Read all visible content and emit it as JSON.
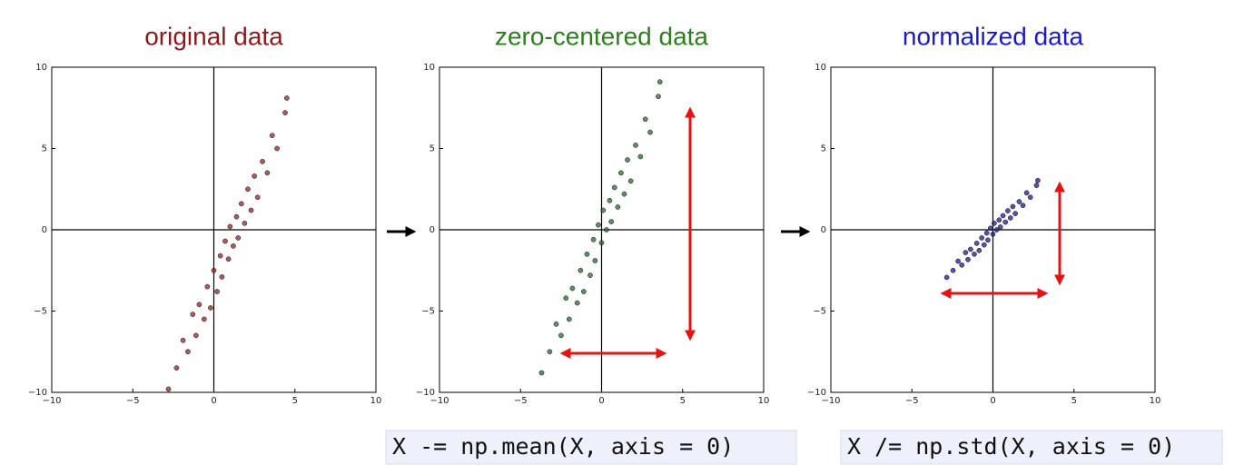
{
  "chart_data": [
    {
      "type": "scatter",
      "title": "original data",
      "title_color": "#8b1a1a",
      "color": "#8b2525",
      "x": [
        -2.8,
        -2.3,
        -1.9,
        -1.6,
        -1.3,
        -1.1,
        -0.9,
        -0.6,
        -0.4,
        -0.2,
        0,
        0.2,
        0.4,
        0.5,
        0.7,
        0.9,
        1,
        1.2,
        1.4,
        1.5,
        1.7,
        1.9,
        2.1,
        2.3,
        2.5,
        2.7,
        3,
        3.3,
        3.6,
        3.9,
        4.4,
        4.5
      ],
      "values": [
        -9.8,
        -8.5,
        -6.8,
        -7.5,
        -5.2,
        -6.5,
        -4.6,
        -5.5,
        -3.5,
        -4.8,
        -2.5,
        -3.8,
        -1.6,
        -2.9,
        -0.7,
        -1.8,
        0.2,
        -1,
        0.8,
        -0.5,
        1.6,
        0.4,
        2.5,
        1.2,
        3.3,
        2,
        4.2,
        3.5,
        5.8,
        5,
        7.2,
        8.1
      ],
      "xlim": [
        -10,
        10
      ],
      "ylim": [
        -10,
        10
      ],
      "xticks": [
        {
          "value": -10,
          "label": "−10"
        },
        {
          "value": -5,
          "label": "−5"
        },
        0,
        5,
        10
      ],
      "yticks": [
        {
          "value": -10,
          "label": "−10"
        },
        {
          "value": -5,
          "label": "−5"
        },
        0,
        5,
        10
      ]
    },
    {
      "type": "scatter",
      "title": "zero-centered data",
      "title_color": "#2e7d1e",
      "color": "#2a6a2a",
      "x": [
        -3.7,
        -3.2,
        -2.8,
        -2.5,
        -2.2,
        -2,
        -1.8,
        -1.5,
        -1.3,
        -1.1,
        -0.9,
        -0.7,
        -0.5,
        -0.4,
        -0.2,
        0,
        0.1,
        0.3,
        0.5,
        0.6,
        0.8,
        1,
        1.2,
        1.4,
        1.6,
        1.8,
        2.1,
        2.4,
        2.7,
        3,
        3.5,
        3.6
      ],
      "values": [
        -8.8,
        -7.5,
        -5.8,
        -6.5,
        -4.2,
        -5.5,
        -3.6,
        -4.5,
        -2.5,
        -3.8,
        -1.5,
        -2.8,
        -0.6,
        -1.9,
        0.3,
        -0.8,
        1.2,
        0,
        1.8,
        0.5,
        2.6,
        1.4,
        3.5,
        2.2,
        4.3,
        3,
        5.2,
        4.5,
        6.8,
        6,
        8.2,
        9.1
      ],
      "xlim": [
        -10,
        10
      ],
      "ylim": [
        -10,
        10
      ],
      "xticks": [
        {
          "value": -10,
          "label": "−10"
        },
        {
          "value": -5,
          "label": "−5"
        },
        0,
        5,
        10
      ],
      "yticks": [
        {
          "value": -10,
          "label": "−10"
        },
        {
          "value": -5,
          "label": "−5"
        },
        0,
        5,
        10
      ]
    },
    {
      "type": "scatter",
      "title": "normalized data",
      "title_color": "#1a1acc",
      "color": "#1c1c85",
      "x": [
        -2.85,
        -2.46,
        -2.15,
        -1.92,
        -1.69,
        -1.54,
        -1.38,
        -1.15,
        -1,
        -0.85,
        -0.69,
        -0.54,
        -0.38,
        -0.31,
        -0.15,
        0,
        0.08,
        0.23,
        0.38,
        0.46,
        0.62,
        0.77,
        0.92,
        1.08,
        1.23,
        1.38,
        1.62,
        1.85,
        2.08,
        2.31,
        2.69,
        2.77
      ],
      "values": [
        -2.93,
        -2.5,
        -1.93,
        -2.17,
        -1.4,
        -1.83,
        -1.2,
        -1.5,
        -0.83,
        -1.27,
        -0.5,
        -0.93,
        -0.2,
        -0.63,
        0.1,
        -0.27,
        0.4,
        0,
        0.6,
        0.17,
        0.87,
        0.47,
        1.17,
        0.73,
        1.43,
        1,
        1.73,
        1.5,
        2.27,
        2,
        2.73,
        3.03
      ],
      "xlim": [
        -10,
        10
      ],
      "ylim": [
        -10,
        10
      ],
      "xticks": [
        {
          "value": -10,
          "label": "−10"
        },
        {
          "value": -5,
          "label": "−5"
        },
        0,
        5,
        10
      ],
      "yticks": [
        {
          "value": -10,
          "label": "−10"
        },
        {
          "value": -5,
          "label": "−5"
        },
        0,
        5,
        10
      ]
    }
  ],
  "code": [
    "X -= np.mean(X, axis = 0)",
    "X /= np.std(X, axis = 0)"
  ]
}
